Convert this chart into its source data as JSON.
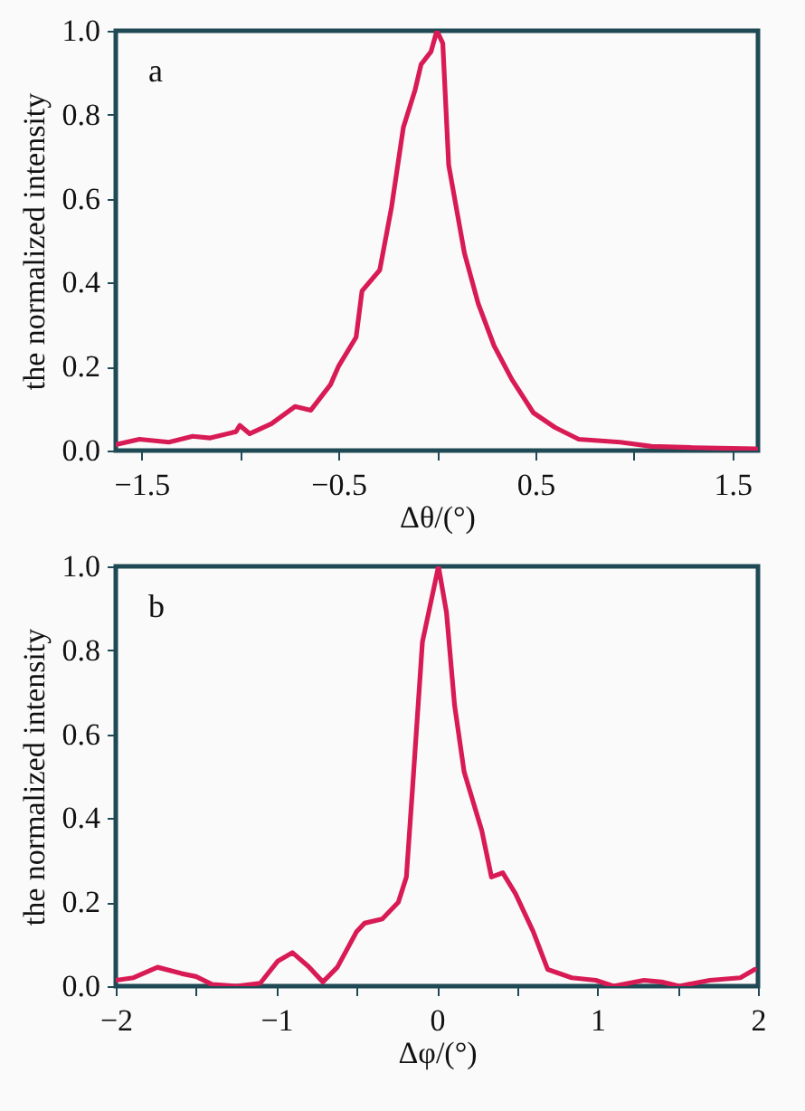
{
  "chart_data": [
    {
      "type": "line",
      "xlabel": "Δθ/(°)",
      "ylabel": "the normalized intensity",
      "annotations": [
        "a"
      ],
      "grid": false,
      "legend": false,
      "marker": "none",
      "line_style": "solid",
      "xlim": [
        -1.63,
        1.63
      ],
      "ylim": [
        0,
        1
      ],
      "xticks": [
        -1.5,
        {
          "value": -1,
          "label": null
        },
        -0.5,
        {
          "value": 0,
          "label": null
        },
        0.5,
        {
          "value": 1,
          "label": null
        },
        1.5
      ],
      "yticks": [
        {
          "value": 0,
          "label": "0.0"
        },
        {
          "value": 0.2,
          "label": "0.2"
        },
        {
          "value": 0.4,
          "label": "0.4"
        },
        {
          "value": 0.6,
          "label": "0.6"
        },
        {
          "value": 0.8,
          "label": "0.8"
        },
        {
          "value": 1,
          "label": "1.0"
        }
      ],
      "x": [
        -1.63,
        -1.51,
        -1.36,
        -1.24,
        -1.15,
        -1.02,
        -1.0,
        -0.95,
        -0.84,
        -0.72,
        -0.64,
        -0.54,
        -0.5,
        -0.41,
        -0.38,
        -0.29,
        -0.23,
        -0.17,
        -0.11,
        -0.08,
        -0.03,
        0,
        0.03,
        0.06,
        0.14,
        0.21,
        0.29,
        0.38,
        0.49,
        0.6,
        0.72,
        0.93,
        1.09,
        1.3,
        1.62
      ],
      "series": [
        {
          "color": "#d81b55",
          "values": [
            0.014,
            0.027,
            0.02,
            0.034,
            0.03,
            0.045,
            0.06,
            0.04,
            0.064,
            0.105,
            0.096,
            0.157,
            0.2,
            0.27,
            0.38,
            0.43,
            0.58,
            0.77,
            0.86,
            0.92,
            0.95,
            1.0,
            0.97,
            0.68,
            0.47,
            0.35,
            0.25,
            0.17,
            0.09,
            0.055,
            0.027,
            0.02,
            0.01,
            0.007,
            0.004
          ]
        }
      ]
    },
    {
      "type": "line",
      "xlabel": "Δφ/(°)",
      "ylabel": "the normalized intensity",
      "annotations": [
        "b"
      ],
      "grid": false,
      "legend": false,
      "marker": "none",
      "line_style": "solid",
      "xlim": [
        -2,
        2
      ],
      "ylim": [
        0,
        1
      ],
      "xticks": [
        -2,
        {
          "value": -1.5,
          "label": null
        },
        -1,
        {
          "value": -0.5,
          "label": null
        },
        0,
        {
          "value": 0.5,
          "label": null
        },
        1,
        {
          "value": 1.5,
          "label": null
        },
        2
      ],
      "yticks": [
        {
          "value": 0,
          "label": "0.0"
        },
        {
          "value": 0.2,
          "label": "0.2"
        },
        {
          "value": 0.4,
          "label": "0.4"
        },
        {
          "value": 0.6,
          "label": "0.6"
        },
        {
          "value": 0.8,
          "label": "0.8"
        },
        {
          "value": 1,
          "label": "1.0"
        }
      ],
      "x": [
        -2,
        -1.89,
        -1.74,
        -1.59,
        -1.5,
        -1.4,
        -1.25,
        -1.1,
        -0.99,
        -0.9,
        -0.8,
        -0.71,
        -0.62,
        -0.5,
        -0.45,
        -0.34,
        -0.24,
        -0.19,
        -0.15,
        -0.09,
        -0.04,
        0.01,
        0.06,
        0.11,
        0.17,
        0.28,
        0.34,
        0.41,
        0.49,
        0.6,
        0.69,
        0.84,
        0.99,
        1.1,
        1.29,
        1.4,
        1.51,
        1.7,
        1.89,
        1.98
      ],
      "series": [
        {
          "color": "#d81b55",
          "values": [
            0.014,
            0.02,
            0.045,
            0.03,
            0.023,
            0.004,
            0,
            0.007,
            0.06,
            0.08,
            0.047,
            0.01,
            0.045,
            0.13,
            0.15,
            0.16,
            0.2,
            0.26,
            0.48,
            0.82,
            0.91,
            1.0,
            0.89,
            0.67,
            0.51,
            0.37,
            0.26,
            0.27,
            0.22,
            0.13,
            0.04,
            0.02,
            0.014,
            0,
            0.014,
            0.01,
            0,
            0.014,
            0.02,
            0.04
          ]
        }
      ]
    }
  ]
}
